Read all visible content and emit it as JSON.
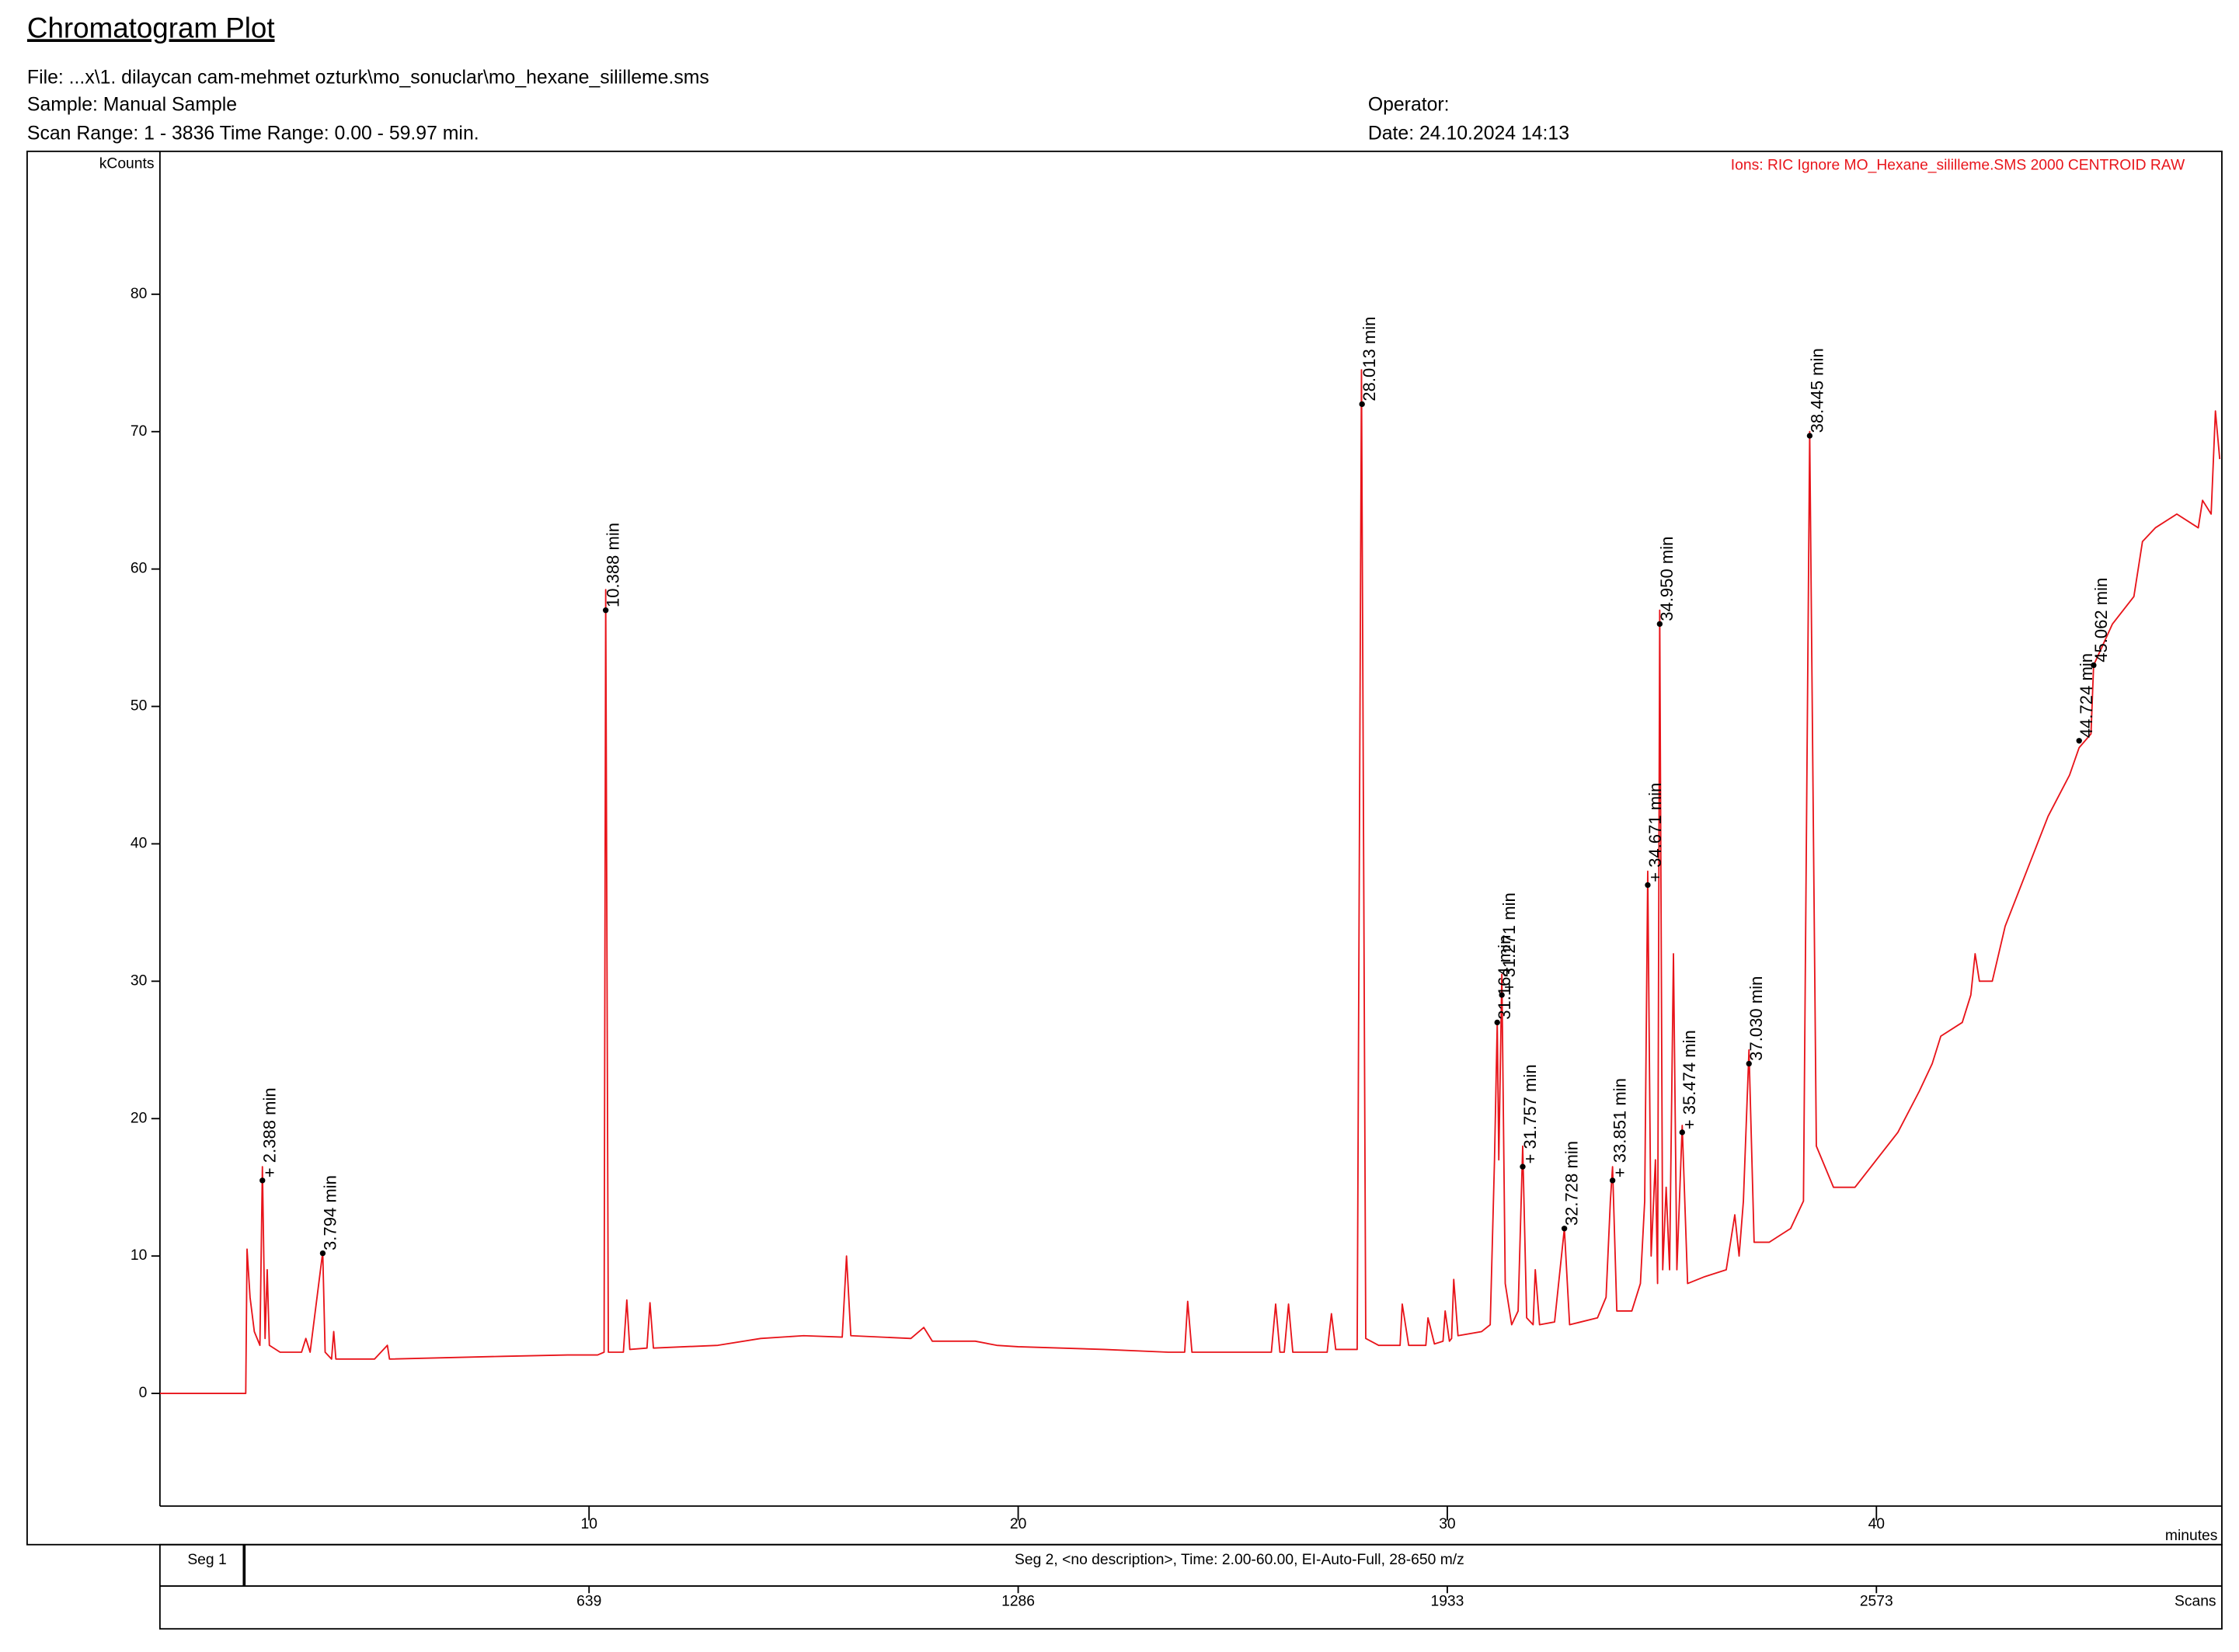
{
  "chart_data": {
    "type": "line",
    "title": "Chromatogram Plot",
    "header": {
      "file": "File: ...x\\1. dilaycan cam-mehmet ozturk\\mo_sonuclar\\mo_hexane_sililleme.sms",
      "sample": "Sample: Manual Sample",
      "scan_range": "Scan Range: 1 - 3836 Time Range: 0.00 - 59.97 min.",
      "operator": "Operator:",
      "date": "Date: 24.10.2024 14:13"
    },
    "ions": "Ions: RIC Ignore MO_Hexane_sililleme.SMS 2000 CENTROID RAW",
    "y_label": "kCounts",
    "x_label": "minutes",
    "color": "#e8141a",
    "xlim": [
      0,
      48.05
    ],
    "ylim": [
      -8.2,
      90.4
    ],
    "xticks": [
      10,
      20,
      30,
      40
    ],
    "yticks": [
      0,
      10,
      20,
      30,
      40,
      50,
      60,
      70,
      80
    ],
    "x": [
      0,
      2.0,
      2.03,
      2.1,
      2.2,
      2.33,
      2.388,
      2.45,
      2.5,
      2.55,
      2.8,
      3.3,
      3.4,
      3.5,
      3.794,
      3.85,
      4.0,
      4.05,
      4.1,
      5.0,
      5.3,
      5.35,
      8,
      9.5,
      10.2,
      10.35,
      10.388,
      10.45,
      10.8,
      10.88,
      10.95,
      11.35,
      11.42,
      11.5,
      13,
      14,
      15,
      15.9,
      16.0,
      16.1,
      17.5,
      17.8,
      18,
      19,
      19.5,
      20,
      22,
      23.5,
      23.88,
      23.95,
      24.05,
      25,
      25.9,
      26.0,
      26.1,
      26.2,
      26.3,
      26.4,
      27.2,
      27.3,
      27.4,
      27.9,
      28.0,
      28.1,
      28.4,
      28.9,
      28.95,
      29.1,
      29.5,
      29.55,
      29.7,
      29.9,
      29.95,
      30.05,
      30.1,
      30.15,
      30.25,
      30.8,
      31.0,
      31.1,
      31.164,
      31.2,
      31.271,
      31.35,
      31.5,
      31.65,
      31.757,
      31.85,
      32.0,
      32.05,
      32.15,
      32.5,
      32.728,
      32.85,
      33.5,
      33.7,
      33.8,
      33.851,
      33.95,
      34.3,
      34.5,
      34.6,
      34.671,
      34.75,
      34.85,
      34.9,
      34.95,
      35.02,
      35.1,
      35.18,
      35.27,
      35.35,
      35.474,
      35.6,
      36.0,
      36.5,
      36.7,
      36.8,
      36.9,
      37.03,
      37.15,
      37.5,
      38.0,
      38.3,
      38.445,
      38.6,
      39,
      39.5,
      40,
      40.5,
      41,
      41.3,
      41.5,
      42,
      42.2,
      42.3,
      42.4,
      42.7,
      43,
      43.5,
      44,
      44.5,
      44.724,
      45,
      45.062,
      45.5,
      46,
      46.2,
      46.5,
      47,
      47.5,
      47.6,
      47.8,
      47.9,
      48.0
    ],
    "values": [
      0,
      0,
      10.5,
      7,
      4.5,
      3.5,
      16.5,
      4,
      9,
      3.5,
      3,
      3,
      4,
      3,
      10.3,
      3,
      2.5,
      4.5,
      2.5,
      2.5,
      3.5,
      2.5,
      2.7,
      2.8,
      2.8,
      3,
      58.5,
      3,
      3,
      6.8,
      3.2,
      3.3,
      6.6,
      3.3,
      3.5,
      4,
      4.2,
      4.1,
      10,
      4.2,
      4,
      4.8,
      3.8,
      3.8,
      3.5,
      3.4,
      3.2,
      3,
      3,
      6.7,
      3,
      3,
      3,
      6.5,
      3,
      3,
      6.5,
      3,
      3,
      5.8,
      3.2,
      3.2,
      74.5,
      4,
      3.5,
      3.5,
      6.5,
      3.5,
      3.5,
      5.5,
      3.6,
      3.8,
      6,
      3.8,
      4,
      8.3,
      4.2,
      4.5,
      5,
      17,
      27,
      17,
      30.5,
      8,
      5,
      6,
      18,
      5.5,
      5,
      9,
      5,
      5.2,
      12,
      5,
      5.5,
      7,
      14,
      16.5,
      6,
      6,
      8,
      14,
      38,
      10,
      17,
      8,
      57,
      9,
      15,
      9,
      32,
      9,
      19.5,
      8,
      8.5,
      9,
      13,
      10,
      14,
      25,
      11,
      11,
      12,
      14,
      70,
      18,
      15,
      15,
      17,
      19,
      22,
      24,
      26,
      27,
      29,
      32,
      30,
      30,
      34,
      38,
      42,
      45,
      47,
      48,
      53,
      56,
      58,
      62,
      63,
      64,
      63,
      65,
      64,
      71.5,
      68
    ],
    "annotations": [
      {
        "x": 2.388,
        "y": 15.5,
        "label": "+ 2.388 min"
      },
      {
        "x": 3.794,
        "y": 10.2,
        "label": "3.794 min"
      },
      {
        "x": 10.388,
        "y": 57,
        "label": "10.388 min"
      },
      {
        "x": 28.013,
        "y": 72,
        "label": "28.013 min"
      },
      {
        "x": 31.164,
        "y": 27,
        "label": "31.164 min"
      },
      {
        "x": 31.271,
        "y": 29,
        "label": "+ 31.271 min"
      },
      {
        "x": 31.757,
        "y": 16.5,
        "label": "+ 31.757 min"
      },
      {
        "x": 32.728,
        "y": 12,
        "label": "32.728 min"
      },
      {
        "x": 33.851,
        "y": 15.5,
        "label": "+ 33.851 min"
      },
      {
        "x": 34.671,
        "y": 37,
        "label": "+ 34.671 min"
      },
      {
        "x": 34.95,
        "y": 56,
        "label": "34.950 min"
      },
      {
        "x": 35.474,
        "y": 19,
        "label": "+ 35.474 min"
      },
      {
        "x": 37.03,
        "y": 24,
        "label": "37.030 min"
      },
      {
        "x": 38.445,
        "y": 69.7,
        "label": "38.445 min"
      },
      {
        "x": 44.724,
        "y": 47.5,
        "label": "44.724 min"
      },
      {
        "x": 45.062,
        "y": 53,
        "label": "45.062 min"
      }
    ],
    "segments": {
      "seg1": "Seg 1",
      "seg2": "Seg 2, <no description>, Time:  2.00-60.00, EI-Auto-Full, 28-650 m/z"
    },
    "scans": {
      "label": "Scans",
      "ticks": [
        639,
        1286,
        1933,
        2573
      ]
    }
  }
}
